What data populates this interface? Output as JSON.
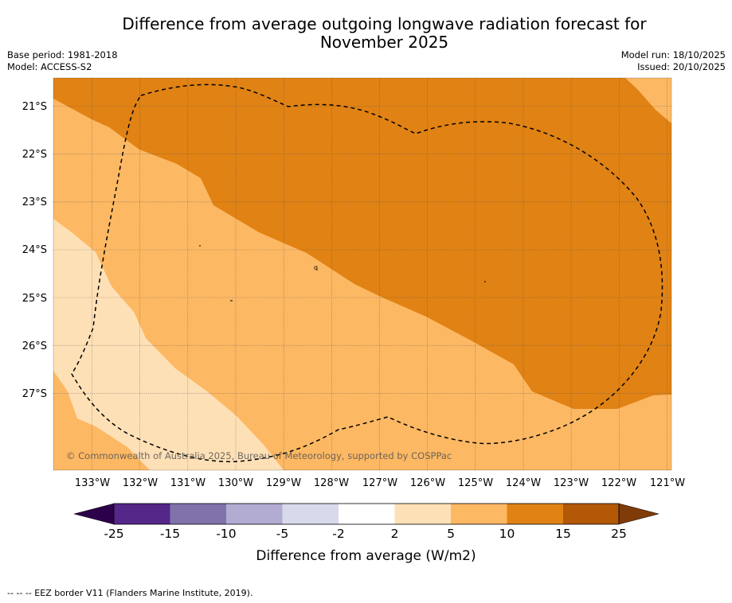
{
  "title": {
    "line1": "Difference from average outgoing longwave radiation forecast for",
    "line2": "November 2025"
  },
  "meta_left": {
    "base_period": "Base period: 1981-2018",
    "model": "Model: ACCESS-S2"
  },
  "meta_right": {
    "model_run": "Model run: 18/10/2025",
    "issued": "Issued: 20/10/2025"
  },
  "map": {
    "lat_labels": [
      "21°S",
      "22°S",
      "23°S",
      "24°S",
      "25°S",
      "26°S",
      "27°S"
    ],
    "lon_labels": [
      "133°W",
      "132°W",
      "131°W",
      "130°W",
      "129°W",
      "128°W",
      "127°W",
      "126°W",
      "125°W",
      "124°W",
      "123°W",
      "122°W",
      "121°W"
    ],
    "copyright": "© Commonwealth of Australia 2025, Bureau of Meteorology, supported by COSPPac",
    "island_labels": [
      "q"
    ]
  },
  "colorbar": {
    "tick_labels": [
      "-25",
      "-15",
      "-10",
      "-5",
      "-2",
      "2",
      "5",
      "10",
      "15",
      "25"
    ],
    "label": "Difference from average (W/m2)",
    "colors": [
      "#2d004b",
      "#542788",
      "#8073ac",
      "#b2abd2",
      "#d8daeb",
      "#ffffff",
      "#fee0b6",
      "#fdb863",
      "#e08214",
      "#b35806",
      "#7f3b08"
    ]
  },
  "footnote": "--  --  -- EEZ border V11 (Flanders Marine Institute, 2019)."
}
